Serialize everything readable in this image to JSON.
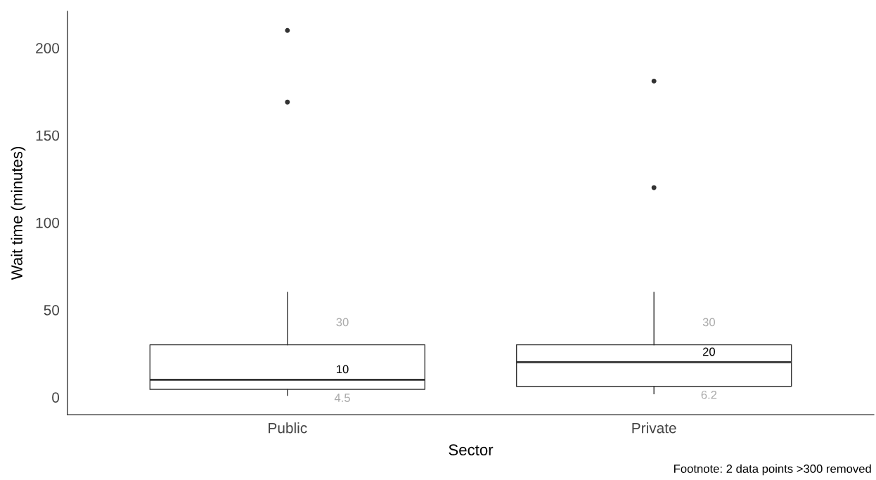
{
  "chart_data": {
    "type": "box",
    "xlabel": "Sector",
    "ylabel": "Wait time (minutes)",
    "categories": [
      "Public",
      "Private"
    ],
    "boxes": [
      {
        "low": 1,
        "q1": 4.5,
        "median": 10,
        "q3": 30,
        "high": 60,
        "outliers": [
          210,
          169
        ]
      },
      {
        "low": 2,
        "q1": 6.2,
        "median": 20,
        "q3": 30,
        "high": 60,
        "outliers": [
          181,
          120
        ]
      }
    ],
    "ylim": [
      -10,
      221
    ],
    "yticks": [
      0,
      50,
      100,
      150,
      200
    ],
    "grid": false,
    "annotations": [
      "30",
      "10",
      "4.5",
      "30",
      "20",
      "6.2",
      "Footnote: 2 data points >300 removed"
    ]
  }
}
